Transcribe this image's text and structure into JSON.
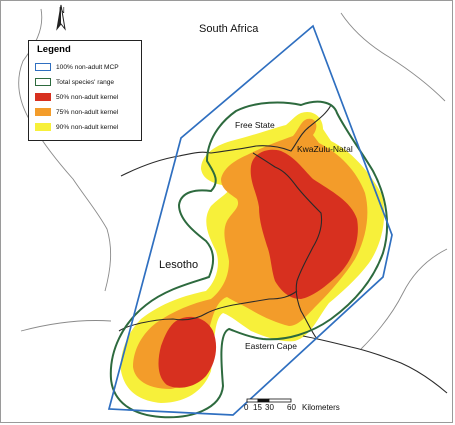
{
  "places": {
    "south_africa": "South Africa",
    "free_state": "Free State",
    "kwazulu_natal": "KwaZulu-Natal",
    "lesotho": "Lesotho",
    "eastern_cape": "Eastern Cape"
  },
  "north_arrow": {
    "label": "N"
  },
  "legend": {
    "title": "Legend",
    "items": [
      {
        "label": "100% non-adult MCP",
        "style": "outline",
        "color": "#2f6fc0"
      },
      {
        "label": "Total species' range",
        "style": "outline",
        "color": "#2d6a3e"
      },
      {
        "label": "50% non-adult kernel",
        "style": "fill",
        "color": "#d7301f"
      },
      {
        "label": "75% non-adult kernel",
        "style": "fill",
        "color": "#f39c2a"
      },
      {
        "label": "90% non-adult kernel",
        "style": "fill",
        "color": "#f7f03a"
      }
    ]
  },
  "scale_bar": {
    "ticks": [
      "0",
      "15",
      "30",
      "60"
    ],
    "unit": "Kilometers"
  }
}
